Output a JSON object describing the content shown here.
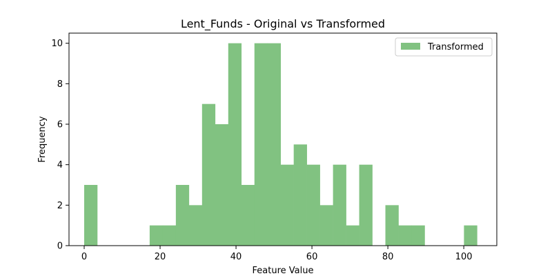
{
  "chart_data": {
    "type": "bar",
    "title": "Lent_Funds - Original vs Transformed",
    "xlabel": "Feature Value",
    "ylabel": "Frequency",
    "xlim": [
      -4.0,
      108.7
    ],
    "ylim": [
      0,
      10.5
    ],
    "xticks": [
      0,
      20,
      40,
      60,
      80,
      100
    ],
    "yticks": [
      0,
      2,
      4,
      6,
      8,
      10
    ],
    "grid": false,
    "legend_position": "top-right",
    "bin_start": 0,
    "bin_width": 3.45,
    "series": [
      {
        "name": "Transformed",
        "color": "#81c281",
        "values": [
          3,
          0,
          0,
          0,
          0,
          1,
          1,
          3,
          2,
          7,
          6,
          10,
          3,
          10,
          10,
          4,
          5,
          4,
          2,
          4,
          1,
          4,
          0,
          2,
          1,
          1,
          0,
          0,
          0,
          1
        ]
      }
    ]
  }
}
